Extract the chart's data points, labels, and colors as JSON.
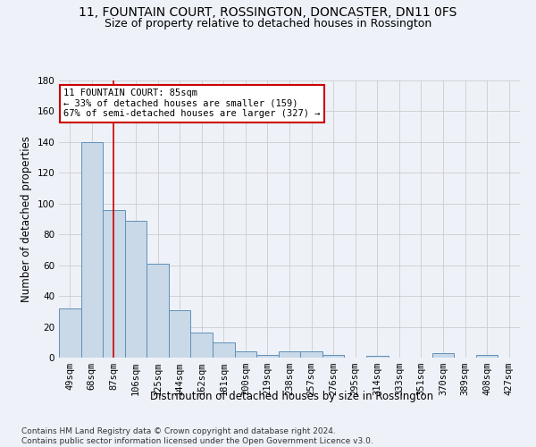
{
  "title": "11, FOUNTAIN COURT, ROSSINGTON, DONCASTER, DN11 0FS",
  "subtitle": "Size of property relative to detached houses in Rossington",
  "xlabel": "Distribution of detached houses by size in Rossington",
  "ylabel": "Number of detached properties",
  "bar_color": "#c9d9e8",
  "bar_edge_color": "#6090b8",
  "grid_color": "#cccccc",
  "background_color": "#eef2f8",
  "vline_color": "#cc0000",
  "vline_x": 2,
  "annotation_text": "11 FOUNTAIN COURT: 85sqm\n← 33% of detached houses are smaller (159)\n67% of semi-detached houses are larger (327) →",
  "annotation_box_color": "#ffffff",
  "annotation_box_edge": "#cc0000",
  "categories": [
    "49sqm",
    "68sqm",
    "87sqm",
    "106sqm",
    "125sqm",
    "144sqm",
    "162sqm",
    "181sqm",
    "200sqm",
    "219sqm",
    "238sqm",
    "257sqm",
    "276sqm",
    "295sqm",
    "314sqm",
    "333sqm",
    "351sqm",
    "370sqm",
    "389sqm",
    "408sqm",
    "427sqm"
  ],
  "values": [
    32,
    140,
    96,
    89,
    61,
    31,
    16,
    10,
    4,
    2,
    4,
    4,
    2,
    0,
    1,
    0,
    0,
    3,
    0,
    2,
    0
  ],
  "ylim": [
    0,
    180
  ],
  "yticks": [
    0,
    20,
    40,
    60,
    80,
    100,
    120,
    140,
    160,
    180
  ],
  "footer": "Contains HM Land Registry data © Crown copyright and database right 2024.\nContains public sector information licensed under the Open Government Licence v3.0.",
  "title_fontsize": 10,
  "subtitle_fontsize": 9,
  "ylabel_fontsize": 8.5,
  "xlabel_fontsize": 8.5,
  "tick_fontsize": 7.5,
  "footer_fontsize": 6.5
}
